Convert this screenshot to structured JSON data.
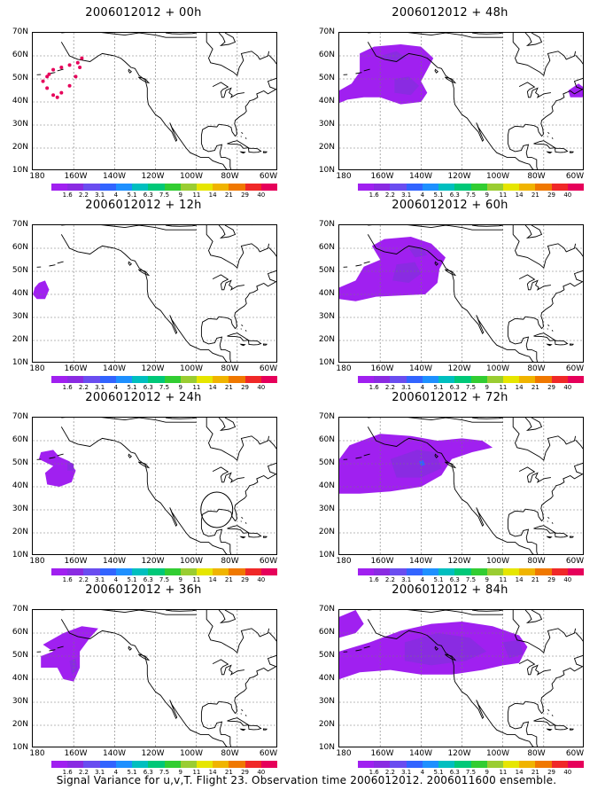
{
  "footer": "Signal Variance for u,v,T. Flight 23. Observation time 2006012012. 2006011600 ensemble.",
  "y_ticks": [
    "70N",
    "60N",
    "50N",
    "40N",
    "30N",
    "20N",
    "10N"
  ],
  "x_ticks": [
    "180",
    "160W",
    "140W",
    "120W",
    "100W",
    "80W",
    "60W"
  ],
  "colorbar": {
    "labels": [
      "1.6",
      "2.2",
      "3.1",
      "4",
      "5.1",
      "6.3",
      "7.5",
      "9",
      "11",
      "14",
      "21",
      "29",
      "40"
    ],
    "colors": [
      "#a020f0",
      "#8a2be2",
      "#6a4df0",
      "#3264ff",
      "#1e90ff",
      "#00bfbf",
      "#00c878",
      "#32cd32",
      "#9acd32",
      "#e6e600",
      "#f0b400",
      "#f07800",
      "#f02828",
      "#e6005a"
    ]
  },
  "panels": [
    {
      "id": "p00",
      "title": "2006012012 + 00h",
      "col": 0,
      "row": 0
    },
    {
      "id": "p48",
      "title": "2006012012 + 48h",
      "col": 1,
      "row": 0
    },
    {
      "id": "p12",
      "title": "2006012012 + 12h",
      "col": 0,
      "row": 1
    },
    {
      "id": "p60",
      "title": "2006012012 + 60h",
      "col": 1,
      "row": 1
    },
    {
      "id": "p24",
      "title": "2006012012 + 24h",
      "col": 0,
      "row": 2
    },
    {
      "id": "p72",
      "title": "2006012012 + 72h",
      "col": 1,
      "row": 2
    },
    {
      "id": "p36",
      "title": "2006012012 + 36h",
      "col": 0,
      "row": 3
    },
    {
      "id": "p84",
      "title": "2006012012 + 84h",
      "col": 1,
      "row": 3
    }
  ]
}
